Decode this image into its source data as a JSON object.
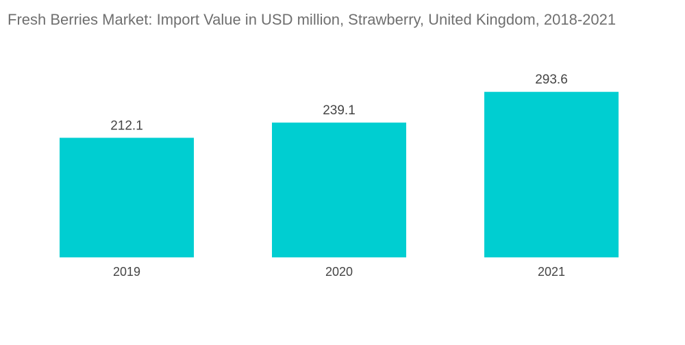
{
  "chart_data": {
    "type": "bar",
    "title": "Fresh Berries Market: Import Value in USD million, Strawberry, United Kingdom, 2018-2021",
    "categories": [
      "2019",
      "2020",
      "2021"
    ],
    "series": [
      {
        "values": [
          212.1,
          239.1,
          293.6
        ]
      }
    ],
    "data_labels": [
      "212.1",
      "239.1",
      "293.6"
    ],
    "xlabel": "",
    "ylabel": "",
    "ylim": [
      0,
      340
    ],
    "grid": false,
    "legend": "none",
    "colors": {
      "bar": "#00ced1"
    }
  }
}
